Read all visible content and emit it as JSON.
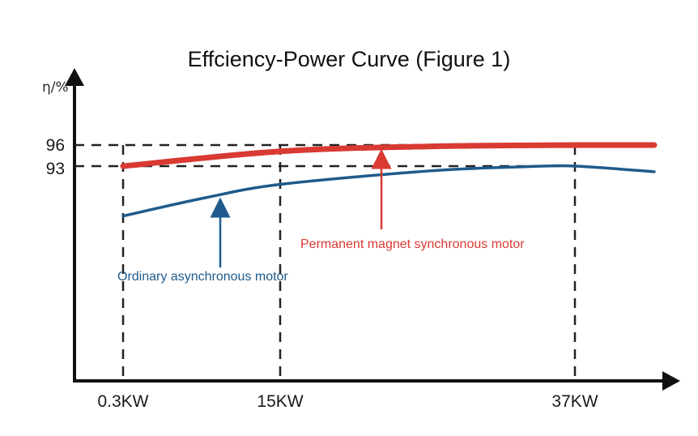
{
  "chart_data": {
    "type": "line",
    "title": "Effciency-Power Curve (Figure 1)",
    "ylabel": "η/%",
    "xlabel": "",
    "x_ticks": [
      "0.3KW",
      "15KW",
      "37KW"
    ],
    "y_ticks": [
      93,
      96
    ],
    "grid": "dashed reference lines at ticks",
    "series": [
      {
        "name": "Permanent magnet synchronous motor",
        "color": "#d93a32",
        "points": [
          [
            0.3,
            93.0
          ],
          [
            15,
            95.1
          ],
          [
            26,
            95.8
          ],
          [
            37,
            96.0
          ],
          [
            41,
            96.0
          ]
        ]
      },
      {
        "name": "Ordinary asynchronous motor",
        "color": "#1f5b8c",
        "points": [
          [
            0.3,
            85.9
          ],
          [
            8,
            88.5
          ],
          [
            15,
            90.4
          ],
          [
            26,
            92.3
          ],
          [
            33,
            92.9
          ],
          [
            37,
            93.0
          ],
          [
            41,
            92.2
          ]
        ]
      }
    ]
  }
}
